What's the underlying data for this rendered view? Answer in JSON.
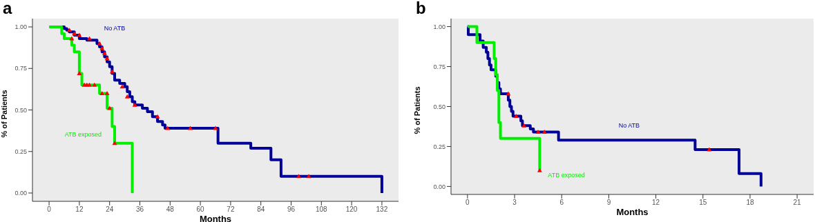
{
  "chart_data": [
    {
      "type": "step",
      "title": "a",
      "xlabel": "Months",
      "ylabel": "% of Patients",
      "xlim": [
        -6.6,
        138.6
      ],
      "xticks": [
        0,
        12,
        24,
        36,
        48,
        60,
        72,
        84,
        96,
        108,
        120,
        132
      ],
      "ylim": [
        -0.05,
        1.05
      ],
      "yticks": [
        {
          "value": 0,
          "label": "0.00"
        },
        {
          "value": 0.25,
          "label": "0.25"
        },
        {
          "value": 0.5,
          "label": "0.50"
        },
        {
          "value": 0.75,
          "label": "0.75"
        },
        {
          "value": 1,
          "label": "1.00"
        }
      ],
      "grid": false,
      "legend": false,
      "line_style": "solid",
      "series": [
        {
          "name": "No ATB",
          "color": "#000099",
          "x": [
            5,
            6,
            7,
            8,
            10,
            12,
            15,
            19,
            20,
            21,
            22,
            23,
            24,
            25,
            26,
            28,
            30,
            31,
            32,
            33,
            34,
            37,
            39,
            41,
            43,
            45,
            46,
            67,
            80,
            88,
            92,
            132
          ],
          "values": [
            1.0,
            0.99,
            0.98,
            0.97,
            0.95,
            0.93,
            0.92,
            0.9,
            0.88,
            0.85,
            0.82,
            0.79,
            0.76,
            0.72,
            0.68,
            0.66,
            0.64,
            0.61,
            0.58,
            0.55,
            0.53,
            0.51,
            0.49,
            0.46,
            0.43,
            0.41,
            0.39,
            0.3,
            0.27,
            0.2,
            0.1,
            0.0
          ]
        },
        {
          "name": "ATB exposed",
          "color": "#00ee00",
          "x": [
            0,
            5,
            6,
            9,
            10,
            12,
            13,
            20,
            23,
            25,
            26,
            33
          ],
          "values": [
            1.0,
            0.96,
            0.93,
            0.89,
            0.85,
            0.72,
            0.65,
            0.6,
            0.51,
            0.4,
            0.3,
            0.0
          ]
        },
        {
          "type": "scatter",
          "marker": "triangle",
          "color": "#ff0000",
          "x": [
            8,
            10,
            12,
            16,
            20,
            21,
            22,
            23,
            25,
            29,
            31,
            34,
            43,
            47,
            56,
            66,
            99,
            103
          ],
          "values": [
            0.98,
            0.96,
            0.95,
            0.93,
            0.9,
            0.87,
            0.84,
            0.81,
            0.73,
            0.64,
            0.58,
            0.53,
            0.46,
            0.39,
            0.39,
            0.39,
            0.1,
            0.1
          ]
        },
        {
          "type": "scatter",
          "marker": "triangle",
          "color": "#ff0000",
          "x": [
            9,
            12,
            14,
            15,
            16,
            18,
            21,
            23,
            24,
            26
          ],
          "values": [
            0.93,
            0.72,
            0.65,
            0.65,
            0.65,
            0.65,
            0.6,
            0.6,
            0.51,
            0.3
          ]
        }
      ]
    },
    {
      "type": "step",
      "title": "b",
      "xlabel": "Months",
      "ylabel": "% of Patients",
      "xlim": [
        -1.05,
        22.05
      ],
      "xticks": [
        0,
        3,
        6,
        9,
        12,
        15,
        18,
        21
      ],
      "ylim": [
        -0.05,
        1.05
      ],
      "yticks": [
        {
          "value": 0,
          "label": "0.00"
        },
        {
          "value": 0.25,
          "label": "0.25"
        },
        {
          "value": 0.5,
          "label": "0.50"
        },
        {
          "value": 0.75,
          "label": "0.75"
        },
        {
          "value": 1,
          "label": "1.00"
        }
      ],
      "grid": false,
      "legend": false,
      "line_style": "solid",
      "series": [
        {
          "name": "No ATB",
          "color": "#000099",
          "x": [
            0,
            0.05,
            0.8,
            1.0,
            1.2,
            1.3,
            1.4,
            1.5,
            1.8,
            1.9,
            2.0,
            2.1,
            2.6,
            2.7,
            2.8,
            2.9,
            3.4,
            3.5,
            4.0,
            4.2,
            5.8,
            14.5,
            17.3,
            18.7
          ],
          "values": [
            1.0,
            0.95,
            0.91,
            0.87,
            0.84,
            0.8,
            0.76,
            0.73,
            0.69,
            0.65,
            0.61,
            0.58,
            0.54,
            0.5,
            0.47,
            0.44,
            0.41,
            0.38,
            0.36,
            0.34,
            0.29,
            0.23,
            0.08,
            0.0
          ]
        },
        {
          "name": "ATB exposed",
          "color": "#00ee00",
          "x": [
            0,
            0.6,
            1.7,
            1.8,
            1.9,
            2.0,
            2.1,
            4.6
          ],
          "values": [
            1.0,
            0.9,
            0.8,
            0.7,
            0.6,
            0.4,
            0.3,
            0.1
          ]
        },
        {
          "type": "scatter",
          "marker": "triangle",
          "color": "#ff0000",
          "x": [
            2.6,
            3.1,
            3.6,
            4.5,
            4.9,
            15.4
          ],
          "values": [
            0.58,
            0.44,
            0.38,
            0.34,
            0.34,
            0.23
          ]
        },
        {
          "type": "scatter",
          "marker": "triangle",
          "color": "#ff0000",
          "x": [
            4.6
          ],
          "values": [
            0.1
          ]
        }
      ]
    }
  ]
}
